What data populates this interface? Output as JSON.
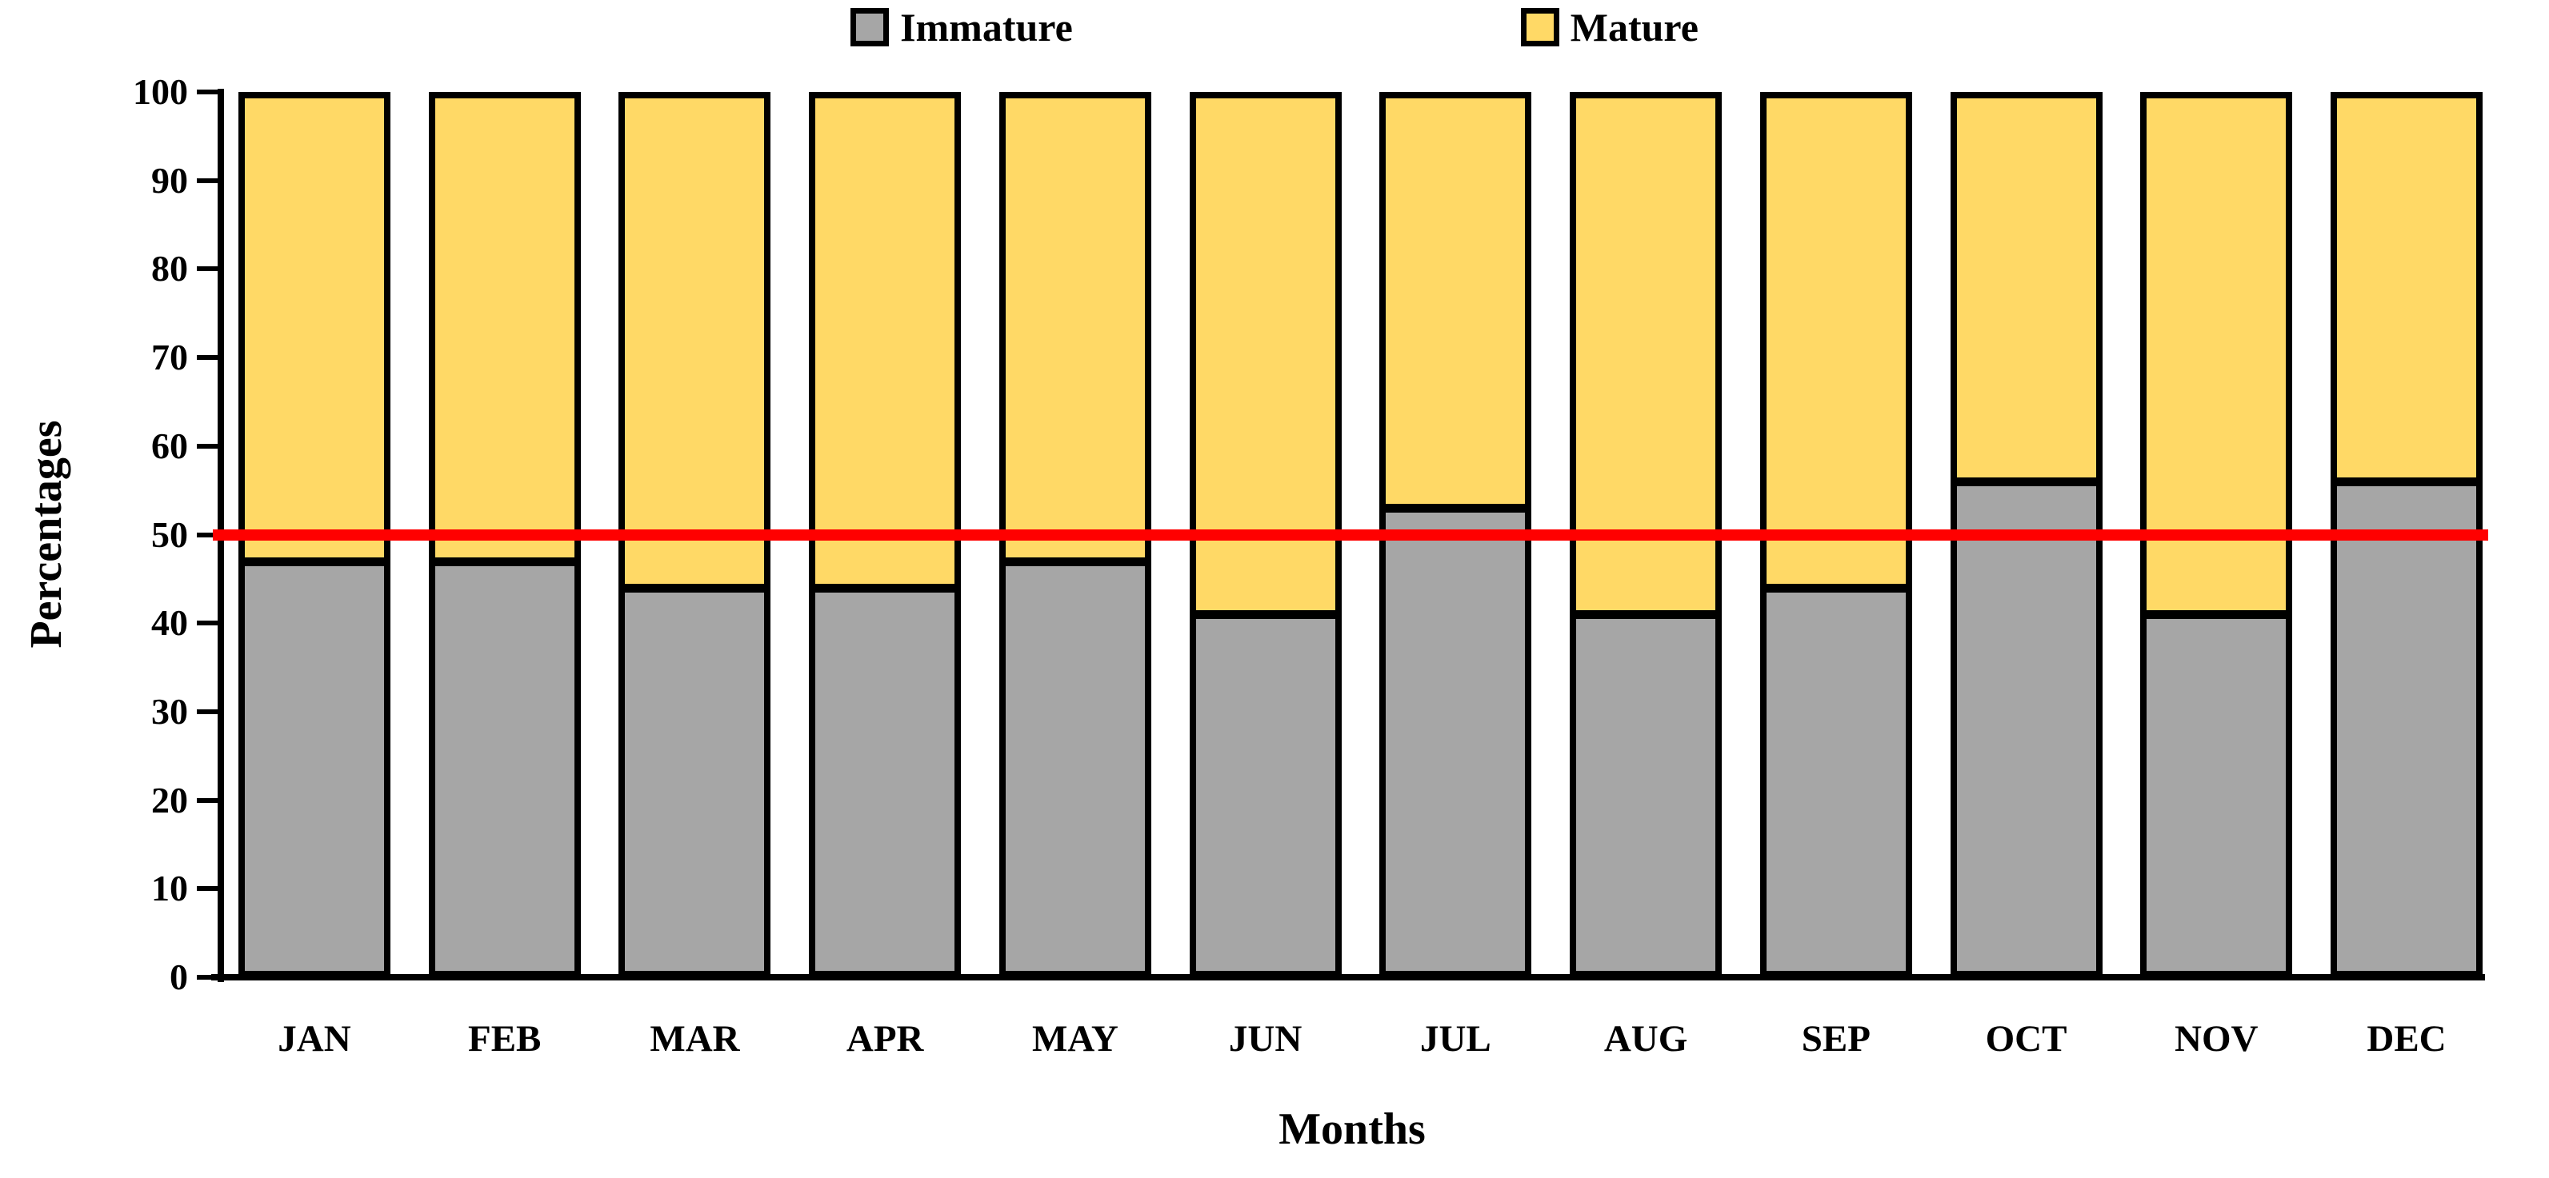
{
  "figure": {
    "background_color": "#FFFFFF",
    "legend": {
      "position": "top",
      "items": [
        {
          "label": "Immature",
          "swatch_color": "#A6A6A6",
          "swatch_border": "#000000"
        },
        {
          "label": "Mature",
          "swatch_color": "#FFD966",
          "swatch_border": "#000000"
        }
      ]
    },
    "y_axis": {
      "title": "Percentages",
      "tick_labels": [
        "100",
        "90",
        "80",
        "70",
        "60",
        "50",
        "40",
        "30",
        "20",
        "10",
        "0"
      ]
    },
    "x_axis": {
      "title": "Months"
    }
  },
  "chart_data": {
    "type": "bar",
    "stacked": true,
    "title": "",
    "xlabel": "Months",
    "ylabel": "Percentages",
    "ylim": [
      0,
      100
    ],
    "ytick_step": 10,
    "grid": false,
    "legend_position": "top",
    "categories": [
      "JAN",
      "FEB",
      "MAR",
      "APR",
      "MAY",
      "JUN",
      "JUL",
      "AUG",
      "SEP",
      "OCT",
      "NOV",
      "DEC"
    ],
    "series": [
      {
        "name": "Immature",
        "color": "#A6A6A6",
        "values": [
          47,
          47,
          44,
          44,
          47,
          41,
          53,
          41,
          44,
          56,
          41,
          56
        ]
      },
      {
        "name": "Mature",
        "color": "#FFD966",
        "values": [
          53,
          53,
          56,
          56,
          53,
          59,
          47,
          59,
          56,
          44,
          59,
          44
        ]
      }
    ],
    "reference_line": {
      "value": 50,
      "color": "#FF0000"
    },
    "bar_border_color": "#000000",
    "axis_color": "#000000"
  }
}
